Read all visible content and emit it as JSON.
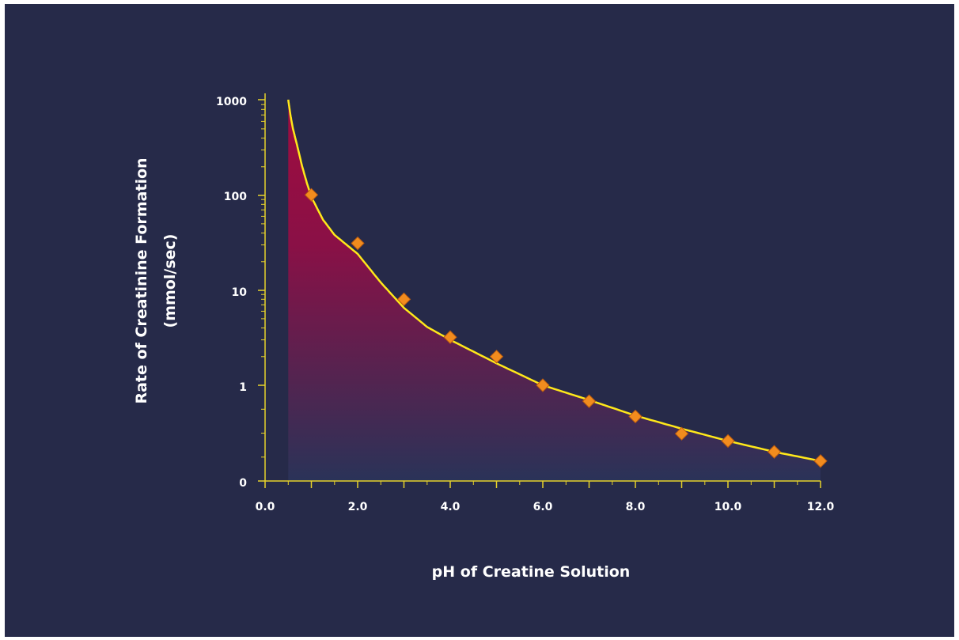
{
  "chart_data": {
    "type": "scatter",
    "xlabel": "pH of Creatine Solution",
    "ylabel_line1": "Rate of Creatinine Formation",
    "ylabel_line2": "(mmol/sec)",
    "y_scale": "log",
    "xlim": [
      0,
      12
    ],
    "x_ticks": [
      "0.0",
      "2.0",
      "4.0",
      "6.0",
      "8.0",
      "10.0",
      "12.0"
    ],
    "y_ticks": [
      "0",
      "1",
      "10",
      "100",
      "1000"
    ],
    "series": [
      {
        "x": [
          1,
          2,
          3,
          4,
          5,
          6,
          7,
          8,
          9,
          10,
          11,
          12
        ],
        "values": [
          100,
          31,
          8,
          3.2,
          2.0,
          1.0,
          0.68,
          0.47,
          0.31,
          0.26,
          0.2,
          0.16
        ]
      }
    ],
    "fit_curve": {
      "x": [
        0.5,
        0.55,
        0.6,
        0.7,
        0.8,
        0.9,
        1.0,
        1.25,
        1.5,
        2.0,
        2.5,
        3.0,
        3.5,
        4.0,
        5.0,
        6.0,
        7.0,
        8.0,
        9.0,
        10.0,
        11.0,
        12.0
      ],
      "values": [
        1000,
        680,
        500,
        320,
        200,
        135,
        95,
        55,
        38,
        24,
        12,
        6.5,
        4.1,
        3.0,
        1.7,
        1.0,
        0.7,
        0.48,
        0.35,
        0.26,
        0.2,
        0.16
      ]
    },
    "grid": false,
    "colors": {
      "background": "#262a49",
      "axis": "#e6d22a",
      "curve": "#ffe81a",
      "marker": "#f28c1e",
      "fill_top": "#a00c3f",
      "fill_bottom": "#2a3358",
      "text": "#ffffff"
    }
  }
}
